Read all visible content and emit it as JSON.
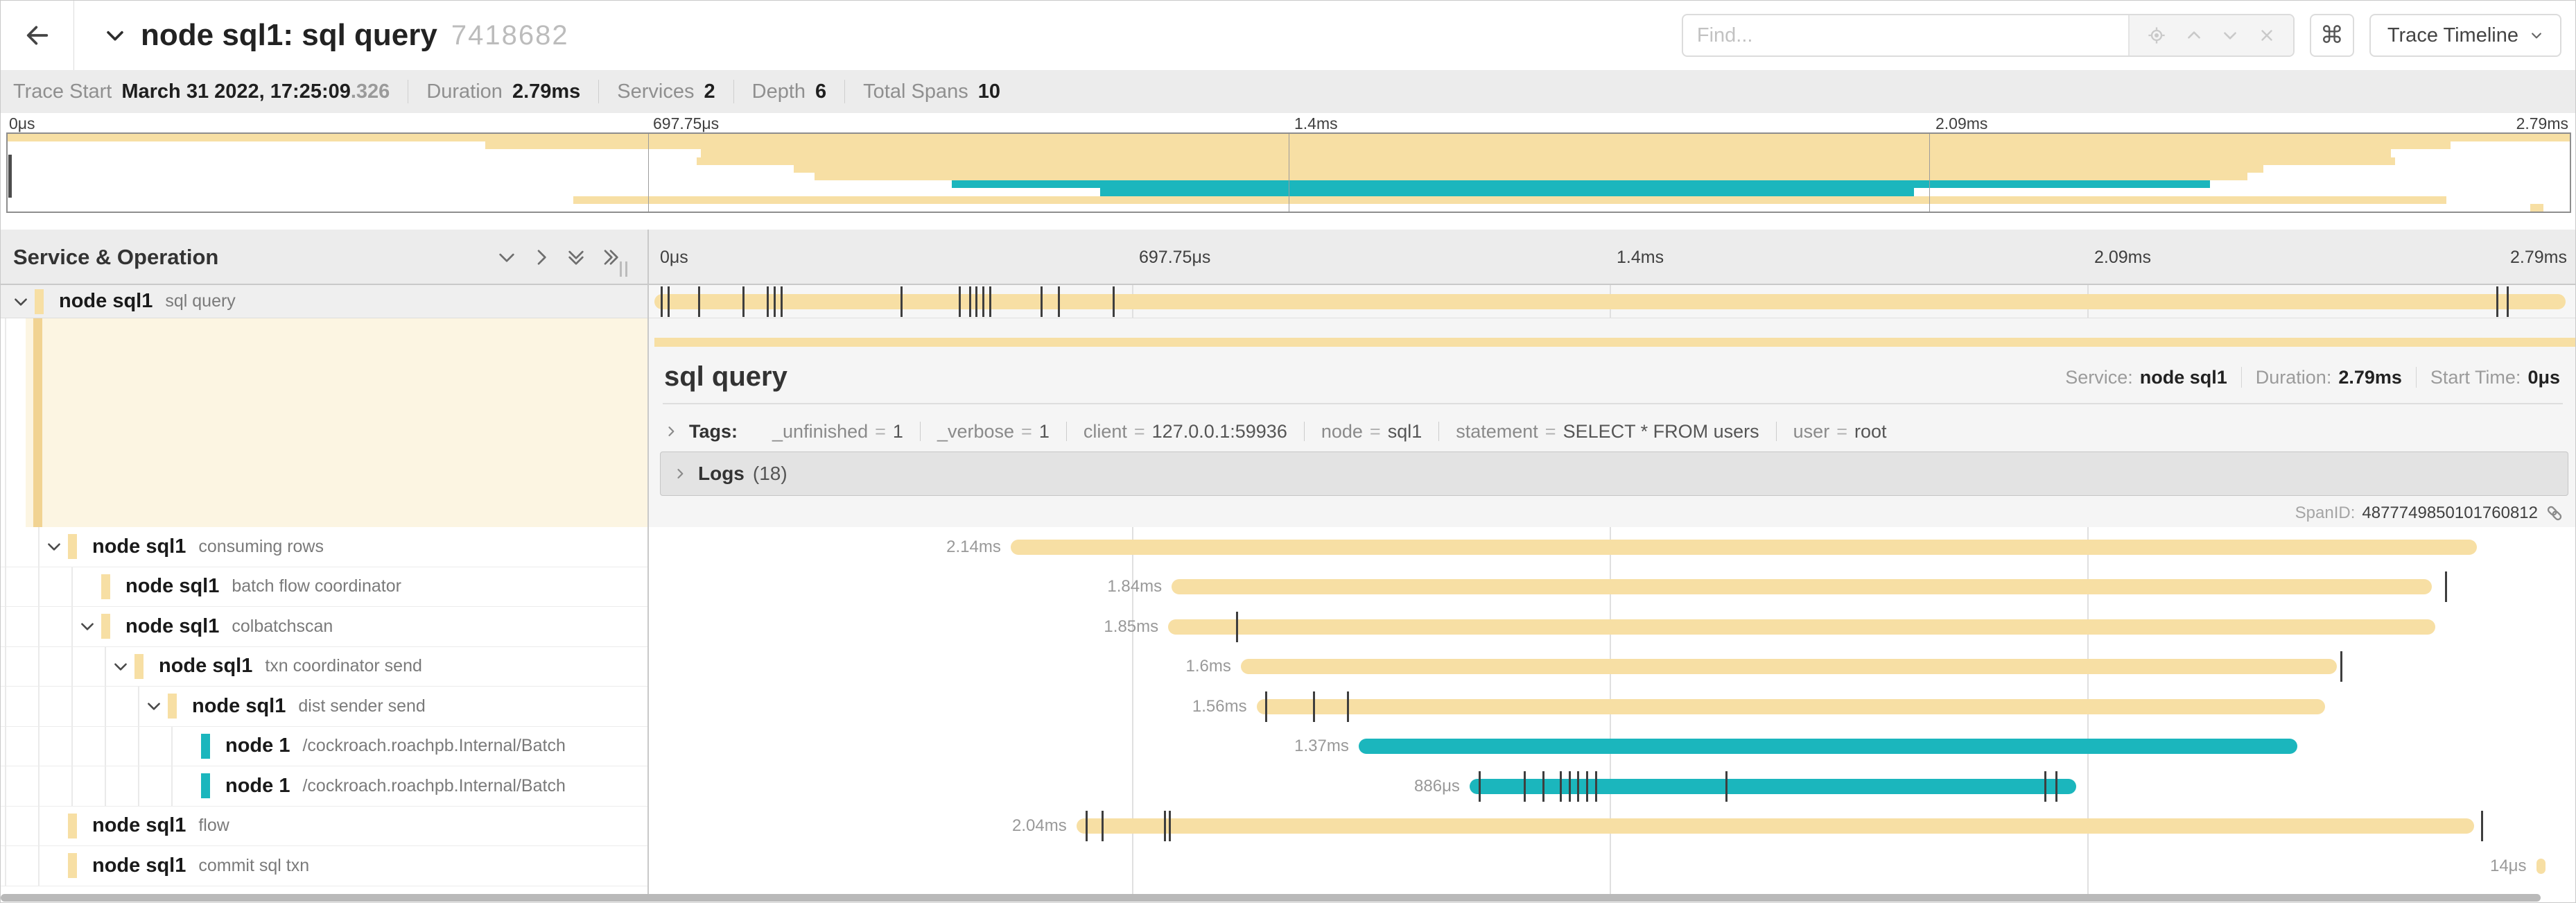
{
  "header": {
    "title": "node sql1: sql query",
    "trace_id": "7418682",
    "find_placeholder": "Find...",
    "shortcut_key": "⌘",
    "view_selector": "Trace Timeline"
  },
  "trace_info": {
    "items": [
      {
        "label": "Trace Start",
        "value": "March 31 2022, 17:25:09",
        "suffix": ".326"
      },
      {
        "label": "Duration",
        "value": "2.79ms"
      },
      {
        "label": "Services",
        "value": "2"
      },
      {
        "label": "Depth",
        "value": "6"
      },
      {
        "label": "Total Spans",
        "value": "10"
      }
    ]
  },
  "ticks": [
    "0μs",
    "697.75μs",
    "1.4ms",
    "2.09ms",
    "2.79ms"
  ],
  "left_header": {
    "title": "Service & Operation"
  },
  "timeline": {
    "total_ms": 2.79
  },
  "colors": {
    "beige": "#f7dfa4",
    "teal": "#1bb6bd"
  },
  "spans": [
    {
      "service": "node sql1",
      "operation": "sql query",
      "depth": 0,
      "color": "beige",
      "expandable": true,
      "selected": true,
      "start_ms": 0,
      "end_ms": 2.79,
      "duration_label": "",
      "ticks_ms": [
        0.01,
        0.02,
        0.065,
        0.13,
        0.165,
        0.175,
        0.185,
        0.36,
        0.445,
        0.46,
        0.47,
        0.48,
        0.49,
        0.565,
        0.59,
        0.67,
        2.69,
        2.705
      ]
    },
    {
      "service": "node sql1",
      "operation": "consuming rows",
      "depth": 1,
      "color": "beige",
      "expandable": true,
      "selected": false,
      "start_ms": 0.52,
      "end_ms": 2.66,
      "duration_label": "2.14ms",
      "ticks_ms": []
    },
    {
      "service": "node sql1",
      "operation": "batch flow coordinator",
      "depth": 2,
      "color": "beige",
      "expandable": false,
      "selected": false,
      "start_ms": 0.755,
      "end_ms": 2.595,
      "duration_label": "1.84ms",
      "ticks_ms": [
        2.615
      ]
    },
    {
      "service": "node sql1",
      "operation": "colbatchscan",
      "depth": 2,
      "color": "beige",
      "expandable": true,
      "selected": false,
      "start_ms": 0.75,
      "end_ms": 2.6,
      "duration_label": "1.85ms",
      "ticks_ms": [
        0.85
      ]
    },
    {
      "service": "node sql1",
      "operation": "txn coordinator send",
      "depth": 3,
      "color": "beige",
      "expandable": true,
      "selected": false,
      "start_ms": 0.856,
      "end_ms": 2.456,
      "duration_label": "1.6ms",
      "ticks_ms": [
        2.462
      ]
    },
    {
      "service": "node sql1",
      "operation": "dist sender send",
      "depth": 4,
      "color": "beige",
      "expandable": true,
      "selected": false,
      "start_ms": 0.879,
      "end_ms": 2.439,
      "duration_label": "1.56ms",
      "ticks_ms": [
        0.893,
        0.962,
        1.012
      ]
    },
    {
      "service": "node 1",
      "operation": "/cockroach.roachpb.Internal/Batch",
      "depth": 5,
      "color": "teal",
      "expandable": false,
      "selected": false,
      "start_ms": 1.028,
      "end_ms": 2.398,
      "duration_label": "1.37ms",
      "ticks_ms": []
    },
    {
      "service": "node 1",
      "operation": "/cockroach.roachpb.Internal/Batch",
      "depth": 5,
      "color": "teal",
      "expandable": false,
      "selected": false,
      "start_ms": 1.19,
      "end_ms": 2.076,
      "duration_label": "886μs",
      "ticks_ms": [
        1.204,
        1.27,
        1.297,
        1.323,
        1.336,
        1.348,
        1.361,
        1.374,
        1.564,
        2.03,
        2.046
      ]
    },
    {
      "service": "node sql1",
      "operation": "flow",
      "depth": 1,
      "color": "beige",
      "expandable": false,
      "selected": false,
      "start_ms": 0.616,
      "end_ms": 2.656,
      "duration_label": "2.04ms",
      "ticks_ms": [
        0.63,
        0.654,
        0.745,
        0.752,
        2.668
      ]
    },
    {
      "service": "node sql1",
      "operation": "commit sql txn",
      "depth": 1,
      "color": "beige",
      "expandable": false,
      "selected": false,
      "start_ms": 2.747,
      "end_ms": 2.761,
      "duration_label": "14μs",
      "ticks_ms": []
    }
  ],
  "detail": {
    "title": "sql query",
    "service_label": "Service:",
    "service": "node sql1",
    "duration_label": "Duration:",
    "duration": "2.79ms",
    "start_label": "Start Time:",
    "start": "0μs",
    "tags_label": "Tags:",
    "tags": [
      {
        "key": "_unfinished",
        "value": "1"
      },
      {
        "key": "_verbose",
        "value": "1"
      },
      {
        "key": "client",
        "value": "127.0.0.1:59936"
      },
      {
        "key": "node",
        "value": "sql1"
      },
      {
        "key": "statement",
        "value": "SELECT * FROM users"
      },
      {
        "key": "user",
        "value": "root"
      }
    ],
    "logs_label": "Logs",
    "logs_count": "(18)",
    "span_id_label": "SpanID:",
    "span_id": "4877749850101760812"
  }
}
